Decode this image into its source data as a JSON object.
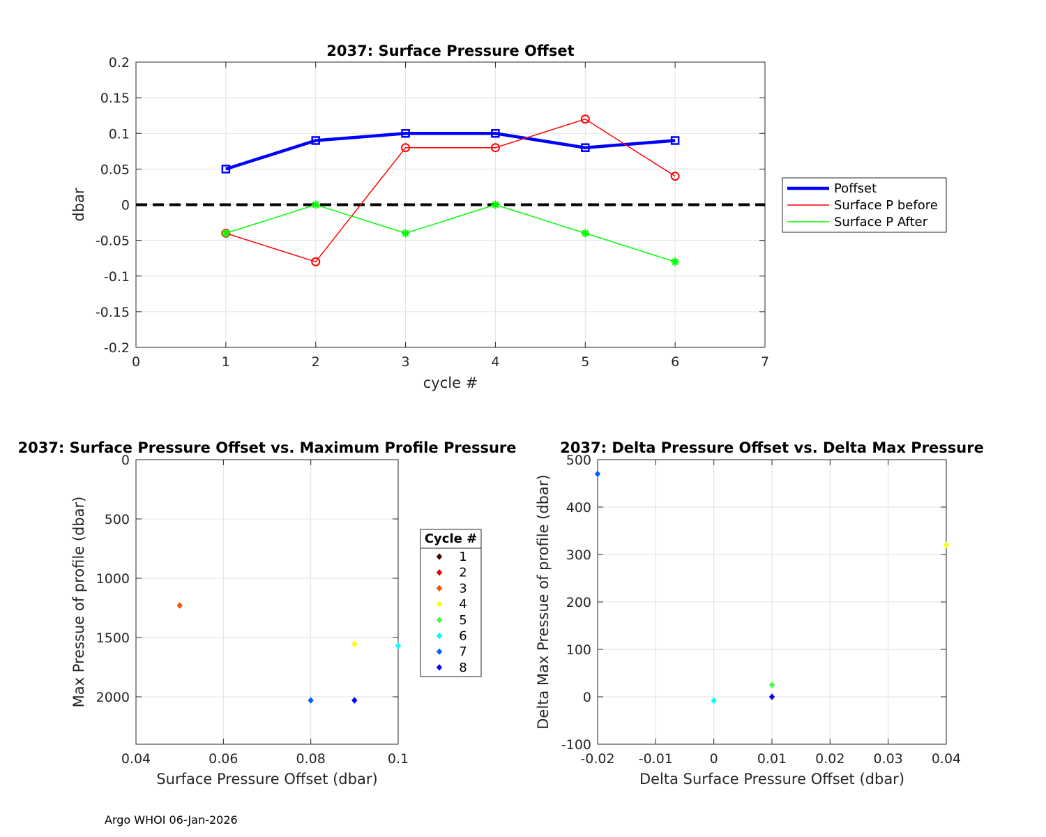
{
  "footer": "Argo WHOI 06-Jan-2026",
  "chart_data": [
    {
      "type": "line",
      "title": "2037: Surface Pressure Offset",
      "xlabel": "cycle #",
      "ylabel": "dbar",
      "xlim": [
        0,
        7
      ],
      "ylim": [
        -0.2,
        0.2
      ],
      "xticks": [
        "0",
        "1",
        "2",
        "3",
        "4",
        "5",
        "6",
        "7"
      ],
      "yticks": [
        "-0.2",
        "-0.15",
        "-0.1",
        "-0.05",
        "0",
        "0.05",
        "0.1",
        "0.15",
        "0.2"
      ],
      "grid": true,
      "legend_position": "outside-right",
      "x": [
        1,
        2,
        3,
        4,
        5,
        6
      ],
      "series": [
        {
          "name": "Poffset",
          "values": [
            0.05,
            0.09,
            0.1,
            0.1,
            0.08,
            0.09
          ],
          "color": "#0000ff",
          "marker": "square"
        },
        {
          "name": "Surface P before",
          "values": [
            -0.04,
            -0.08,
            0.08,
            0.08,
            0.12,
            0.04
          ],
          "color": "#ff0000",
          "marker": "circle"
        },
        {
          "name": "Surface P After",
          "values": [
            -0.04,
            0.0,
            -0.04,
            0.0,
            -0.04,
            -0.08
          ],
          "color": "#00ff00",
          "marker": "asterisk"
        }
      ],
      "reference_line": {
        "y": 0,
        "style": "dashed",
        "color": "#000000"
      }
    },
    {
      "type": "scatter",
      "title": "2037: Surface Pressure Offset vs. Maximum Profile Pressure",
      "xlabel": "Surface Pressure Offset (dbar)",
      "ylabel": "Max Pressue of profile (dbar)",
      "xlim": [
        0.04,
        0.1
      ],
      "ylim": [
        0,
        2400
      ],
      "y_reversed": true,
      "xticks": [
        "0.04",
        "0.06",
        "0.08",
        "0.1"
      ],
      "yticks": [
        "0",
        "500",
        "1000",
        "1500",
        "2000"
      ],
      "grid": true,
      "legend_title": "Cycle #",
      "legend_position": "outside-right",
      "legend": [
        {
          "label": "1",
          "color": "#3a0000"
        },
        {
          "label": "2",
          "color": "#e00000"
        },
        {
          "label": "3",
          "color": "#ff5000"
        },
        {
          "label": "4",
          "color": "#ffff00"
        },
        {
          "label": "5",
          "color": "#40ff40"
        },
        {
          "label": "6",
          "color": "#00ffff"
        },
        {
          "label": "7",
          "color": "#0060ff"
        },
        {
          "label": "8",
          "color": "#0000ff"
        }
      ],
      "points": [
        {
          "x": 0.05,
          "y": 1230,
          "color": "#ff5000"
        },
        {
          "x": 0.09,
          "y": 1555,
          "color": "#ffff00"
        },
        {
          "x": 0.1,
          "y": 1570,
          "color": "#00ffff"
        },
        {
          "x": 0.08,
          "y": 2030,
          "color": "#0060ff"
        },
        {
          "x": 0.09,
          "y": 2030,
          "color": "#0000ff"
        }
      ]
    },
    {
      "type": "scatter",
      "title": "2037: Delta Pressure Offset vs. Delta Max Pressure",
      "xlabel": "Delta Surface Pressure Offset (dbar)",
      "ylabel": "Delta Max Pressue of profile (dbar)",
      "xlim": [
        -0.02,
        0.04
      ],
      "ylim": [
        -100,
        500
      ],
      "xticks": [
        "-0.02",
        "-0.01",
        "0",
        "0.01",
        "0.02",
        "0.03",
        "0.04"
      ],
      "yticks": [
        "-100",
        "0",
        "100",
        "200",
        "300",
        "400",
        "500"
      ],
      "grid": true,
      "points": [
        {
          "x": -0.02,
          "y": 470,
          "color": "#0060ff"
        },
        {
          "x": 0.04,
          "y": 320,
          "color": "#ffff00"
        },
        {
          "x": 0.01,
          "y": 25,
          "color": "#40ff40"
        },
        {
          "x": 0.0,
          "y": -8,
          "color": "#00ffff"
        },
        {
          "x": 0.01,
          "y": 0,
          "color": "#0000ff"
        }
      ]
    }
  ]
}
